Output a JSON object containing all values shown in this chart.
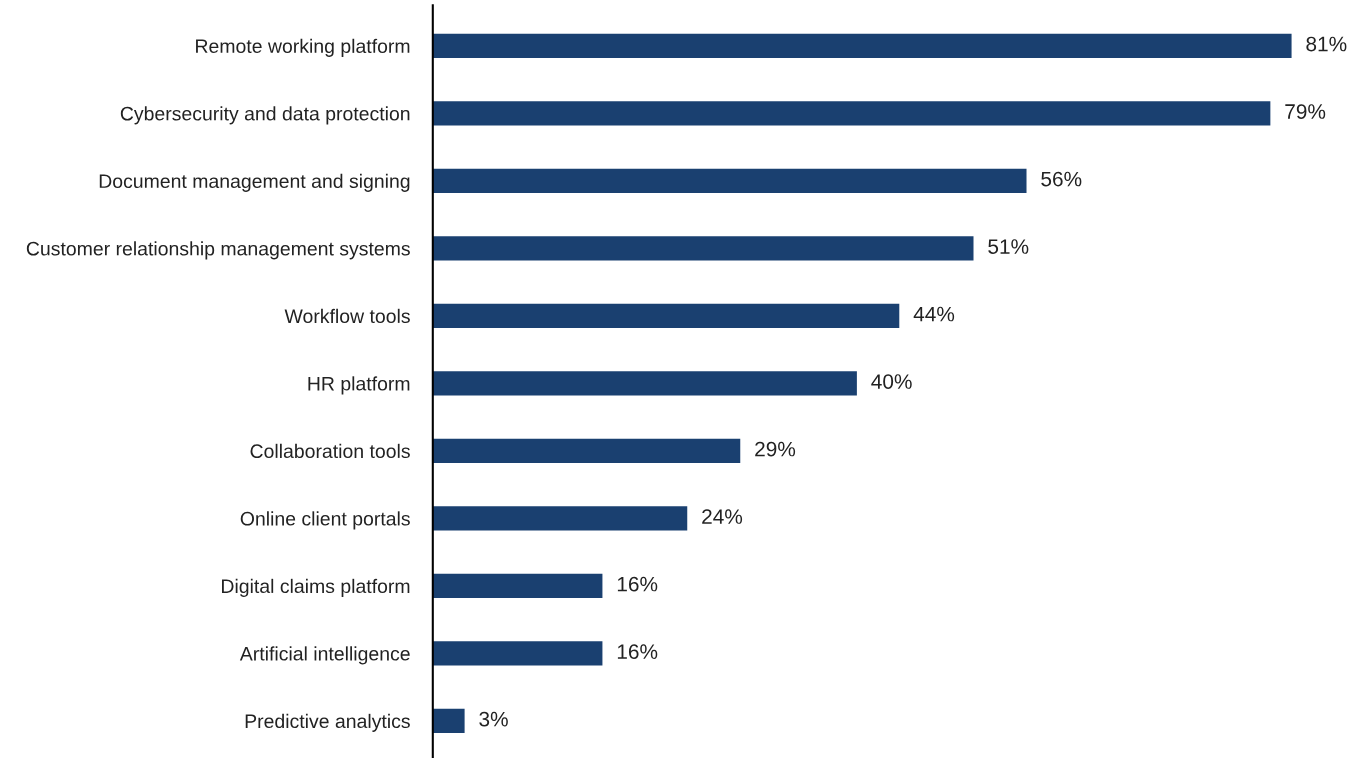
{
  "chart_data": {
    "type": "bar",
    "orientation": "horizontal",
    "categories": [
      "Remote working platform",
      "Cybersecurity and data protection",
      "Document management and signing",
      "Customer relationship management systems",
      "Workflow tools",
      "HR platform",
      "Collaboration tools",
      "Online client portals",
      "Digital claims platform",
      "Artificial intelligence",
      "Predictive analytics"
    ],
    "values": [
      81,
      79,
      56,
      51,
      44,
      40,
      29,
      24,
      16,
      16,
      3
    ],
    "value_labels": [
      "81%",
      "79%",
      "56%",
      "51%",
      "44%",
      "40%",
      "29%",
      "24%",
      "16%",
      "16%",
      "3%"
    ],
    "color": "#1a4070",
    "grid": false,
    "legend": false
  }
}
